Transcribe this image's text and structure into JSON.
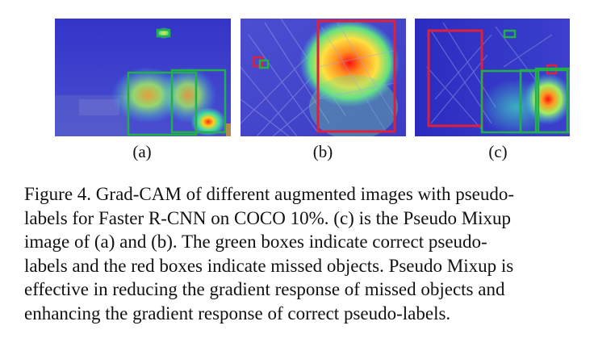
{
  "figure": {
    "panels": [
      {
        "id": "a",
        "label": "(a)"
      },
      {
        "id": "b",
        "label": "(b)"
      },
      {
        "id": "c",
        "label": "(c)"
      }
    ],
    "colors": {
      "correct_box": "#22b04a",
      "missed_box": "#e0203a",
      "cam_low": "#2a2ac8",
      "cam_high": "#ff2a10"
    },
    "caption_lines": [
      "Figure 4. Grad-CAM of different augmented images with pseudo-",
      "labels for Faster R-CNN on COCO 10%. (c) is the Pseudo Mixup",
      "image of (a) and (b).  The green boxes indicate correct pseudo-",
      "labels and the red boxes indicate missed objects. Pseudo Mixup is",
      "effective in reducing the gradient response of missed objects and",
      "enhancing the gradient response of correct pseudo-labels."
    ]
  }
}
